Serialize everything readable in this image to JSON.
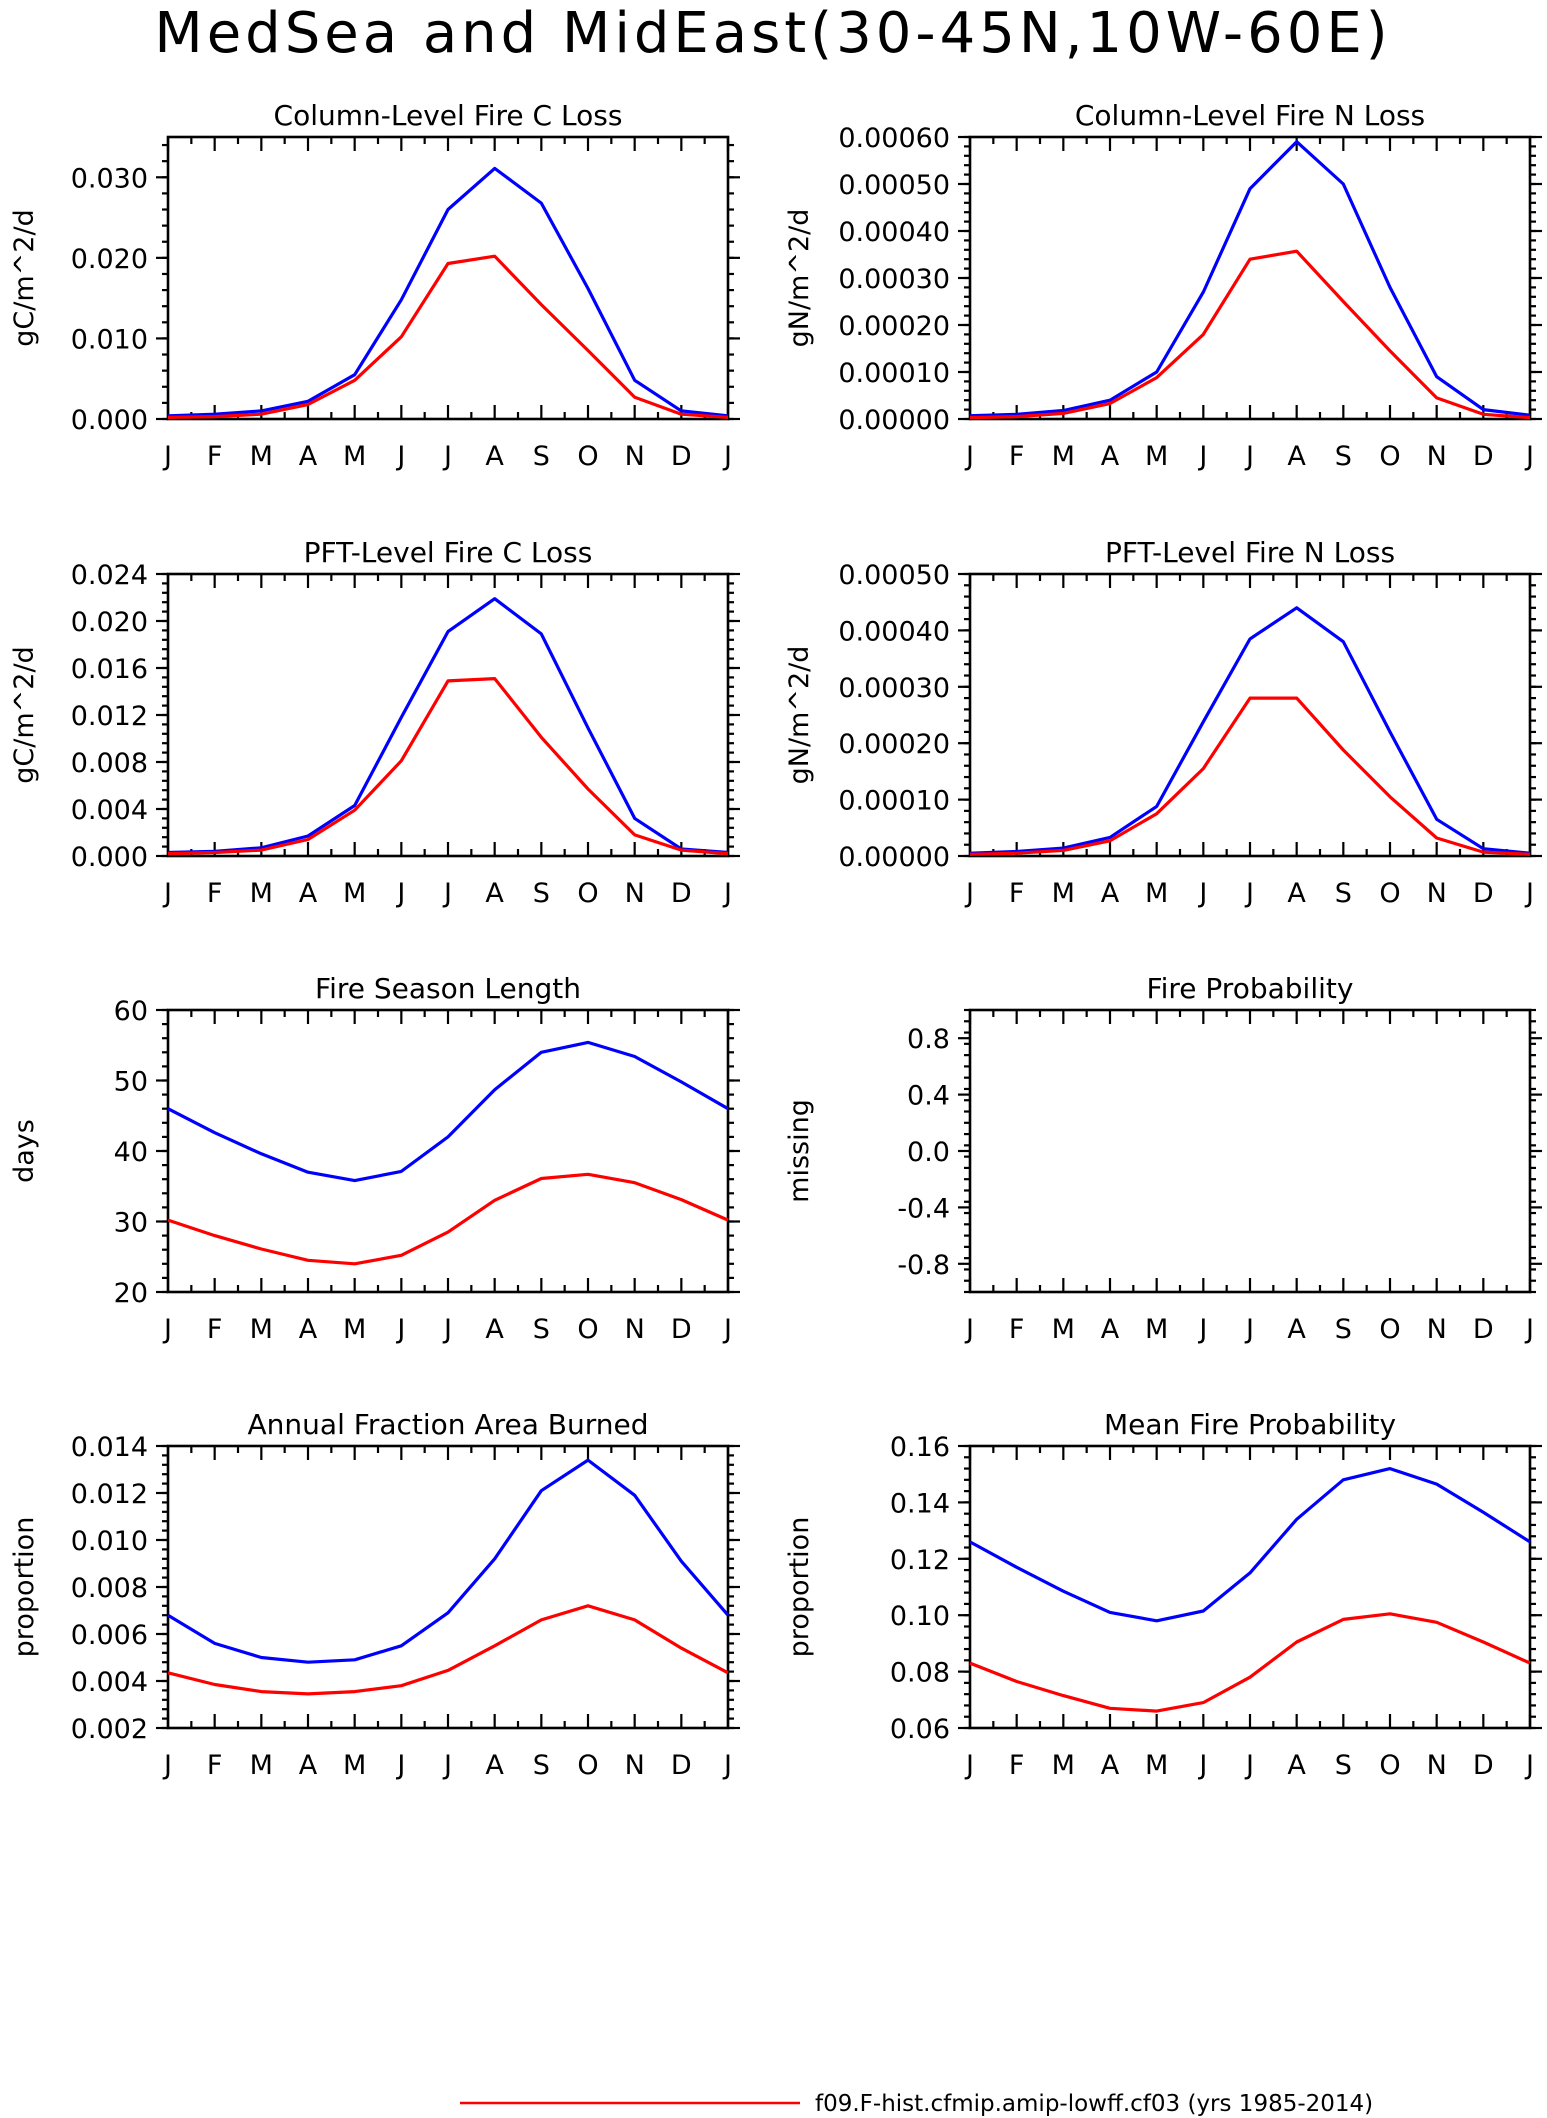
{
  "page_title": "MedSea and MidEast(30-45N,10W-60E)",
  "month_labels": [
    "J",
    "F",
    "M",
    "A",
    "M",
    "J",
    "J",
    "A",
    "S",
    "O",
    "N",
    "D",
    "J"
  ],
  "colors": {
    "case": "#ff0000",
    "control": "#0000ff"
  },
  "legend": {
    "case_label": "f09.F-hist.cfmip.amip-lowff.cf03 (yrs 1985-2014)"
  },
  "chart_data": [
    {
      "id": "col-fire-c",
      "type": "line",
      "title": "Column-Level Fire C Loss",
      "ylabel": "gC/m^2/d",
      "ylim": [
        0,
        0.035
      ],
      "yticks": [
        "0.000",
        "0.010",
        "0.020",
        "0.030"
      ],
      "ytick_values": [
        0,
        0.01,
        0.02,
        0.03
      ],
      "series": [
        {
          "color": "#0000ff",
          "values": [
            0.0004,
            0.0006,
            0.001,
            0.0022,
            0.0055,
            0.0148,
            0.026,
            0.0311,
            0.0268,
            0.0162,
            0.0048,
            0.001,
            0.0004
          ]
        },
        {
          "color": "#ff0000",
          "values": [
            0.0002,
            0.0003,
            0.0006,
            0.0018,
            0.0048,
            0.0102,
            0.0193,
            0.0202,
            0.0142,
            0.0085,
            0.0027,
            0.0006,
            0.0002
          ]
        }
      ]
    },
    {
      "id": "col-fire-n",
      "type": "line",
      "title": "Column-Level Fire N Loss",
      "ylabel": "gN/m^2/d",
      "ylim": [
        0,
        0.0006
      ],
      "yticks": [
        "0.00000",
        "0.00010",
        "0.00020",
        "0.00030",
        "0.00040",
        "0.00050",
        "0.00060"
      ],
      "ytick_values": [
        0,
        0.0001,
        0.0002,
        0.0003,
        0.0004,
        0.0005,
        0.0006
      ],
      "series": [
        {
          "color": "#0000ff",
          "values": [
            7e-06,
            1e-05,
            1.8e-05,
            4e-05,
            0.0001,
            0.00027,
            0.00049,
            0.00059,
            0.0005,
            0.00028,
            9e-05,
            2e-05,
            8e-06
          ]
        },
        {
          "color": "#ff0000",
          "values": [
            3e-06,
            5e-06,
            1.2e-05,
            3.3e-05,
            8.8e-05,
            0.00018,
            0.00034,
            0.000357,
            0.00025,
            0.000145,
            4.5e-05,
            1e-05,
            3e-06
          ]
        }
      ]
    },
    {
      "id": "pft-fire-c",
      "type": "line",
      "title": "PFT-Level Fire C Loss",
      "ylabel": "gC/m^2/d",
      "ylim": [
        0,
        0.024
      ],
      "yticks": [
        "0.000",
        "0.004",
        "0.008",
        "0.012",
        "0.016",
        "0.020",
        "0.024"
      ],
      "ytick_values": [
        0,
        0.004,
        0.008,
        0.012,
        0.016,
        0.02,
        0.024
      ],
      "series": [
        {
          "color": "#0000ff",
          "values": [
            0.0003,
            0.0004,
            0.0007,
            0.0017,
            0.0043,
            0.0118,
            0.0191,
            0.0219,
            0.0189,
            0.0109,
            0.0032,
            0.0006,
            0.0003
          ]
        },
        {
          "color": "#ff0000",
          "values": [
            0.0002,
            0.0003,
            0.0005,
            0.0014,
            0.0039,
            0.0081,
            0.0149,
            0.0151,
            0.0101,
            0.0057,
            0.0018,
            0.0005,
            0.0002
          ]
        }
      ]
    },
    {
      "id": "pft-fire-n",
      "type": "line",
      "title": "PFT-Level Fire N Loss",
      "ylabel": "gN/m^2/d",
      "ylim": [
        0,
        0.0005
      ],
      "yticks": [
        "0.00000",
        "0.00010",
        "0.00020",
        "0.00030",
        "0.00040",
        "0.00050"
      ],
      "ytick_values": [
        0,
        0.0001,
        0.0002,
        0.0003,
        0.0004,
        0.0005
      ],
      "series": [
        {
          "color": "#0000ff",
          "values": [
            5e-06,
            8e-06,
            1.4e-05,
            3.3e-05,
            8.8e-05,
            0.000238,
            0.000385,
            0.00044,
            0.00038,
            0.00022,
            6.5e-05,
            1.3e-05,
            5e-06
          ]
        },
        {
          "color": "#ff0000",
          "values": [
            3e-06,
            5e-06,
            1e-05,
            2.7e-05,
            7.5e-05,
            0.000155,
            0.00028,
            0.00028,
            0.000188,
            0.000105,
            3.2e-05,
            7e-06,
            3e-06
          ]
        }
      ]
    },
    {
      "id": "fire-season-length",
      "type": "line",
      "title": "Fire Season Length",
      "ylabel": "days",
      "ylim": [
        20,
        60
      ],
      "yticks": [
        "20",
        "30",
        "40",
        "50",
        "60"
      ],
      "ytick_values": [
        20,
        30,
        40,
        50,
        60
      ],
      "series": [
        {
          "color": "#0000ff",
          "values": [
            46.0,
            42.6,
            39.6,
            37.0,
            35.8,
            37.1,
            42.0,
            48.7,
            54.0,
            55.4,
            53.4,
            49.8,
            46.0
          ]
        },
        {
          "color": "#ff0000",
          "values": [
            30.2,
            28.0,
            26.1,
            24.5,
            24.0,
            25.2,
            28.5,
            33.0,
            36.1,
            36.7,
            35.5,
            33.1,
            30.2
          ]
        }
      ]
    },
    {
      "id": "fire-probability",
      "type": "line",
      "title": "Fire Probability",
      "ylabel": "missing",
      "ylim": [
        -1,
        1
      ],
      "yticks": [
        "-0.8",
        "-0.4",
        "0.0",
        "0.4",
        "0.8"
      ],
      "ytick_values": [
        -0.8,
        -0.4,
        0.0,
        0.4,
        0.8
      ],
      "series": []
    },
    {
      "id": "annual-fraction-area-burned",
      "type": "line",
      "title": "Annual Fraction Area Burned",
      "ylabel": "proportion",
      "ylim": [
        0.002,
        0.014
      ],
      "yticks": [
        "0.002",
        "0.004",
        "0.006",
        "0.008",
        "0.010",
        "0.012",
        "0.014"
      ],
      "ytick_values": [
        0.002,
        0.004,
        0.006,
        0.008,
        0.01,
        0.012,
        0.014
      ],
      "series": [
        {
          "color": "#0000ff",
          "values": [
            0.0068,
            0.0056,
            0.005,
            0.0048,
            0.0049,
            0.0055,
            0.0069,
            0.0092,
            0.0121,
            0.0134,
            0.0119,
            0.0091,
            0.0068
          ]
        },
        {
          "color": "#ff0000",
          "values": [
            0.00435,
            0.00385,
            0.00355,
            0.00345,
            0.00355,
            0.0038,
            0.00445,
            0.0055,
            0.0066,
            0.0072,
            0.0066,
            0.0054,
            0.00435
          ]
        }
      ]
    },
    {
      "id": "mean-fire-probability",
      "type": "line",
      "title": "Mean Fire Probability",
      "ylabel": "proportion",
      "ylim": [
        0.06,
        0.16
      ],
      "yticks": [
        "0.06",
        "0.08",
        "0.10",
        "0.12",
        "0.14",
        "0.16"
      ],
      "ytick_values": [
        0.06,
        0.08,
        0.1,
        0.12,
        0.14,
        0.16
      ],
      "series": [
        {
          "color": "#0000ff",
          "values": [
            0.126,
            0.117,
            0.1085,
            0.101,
            0.098,
            0.1015,
            0.115,
            0.134,
            0.148,
            0.152,
            0.1465,
            0.1365,
            0.126
          ]
        },
        {
          "color": "#ff0000",
          "values": [
            0.083,
            0.0765,
            0.0715,
            0.067,
            0.066,
            0.069,
            0.078,
            0.0905,
            0.0985,
            0.1005,
            0.0975,
            0.0905,
            0.083
          ]
        }
      ]
    }
  ]
}
